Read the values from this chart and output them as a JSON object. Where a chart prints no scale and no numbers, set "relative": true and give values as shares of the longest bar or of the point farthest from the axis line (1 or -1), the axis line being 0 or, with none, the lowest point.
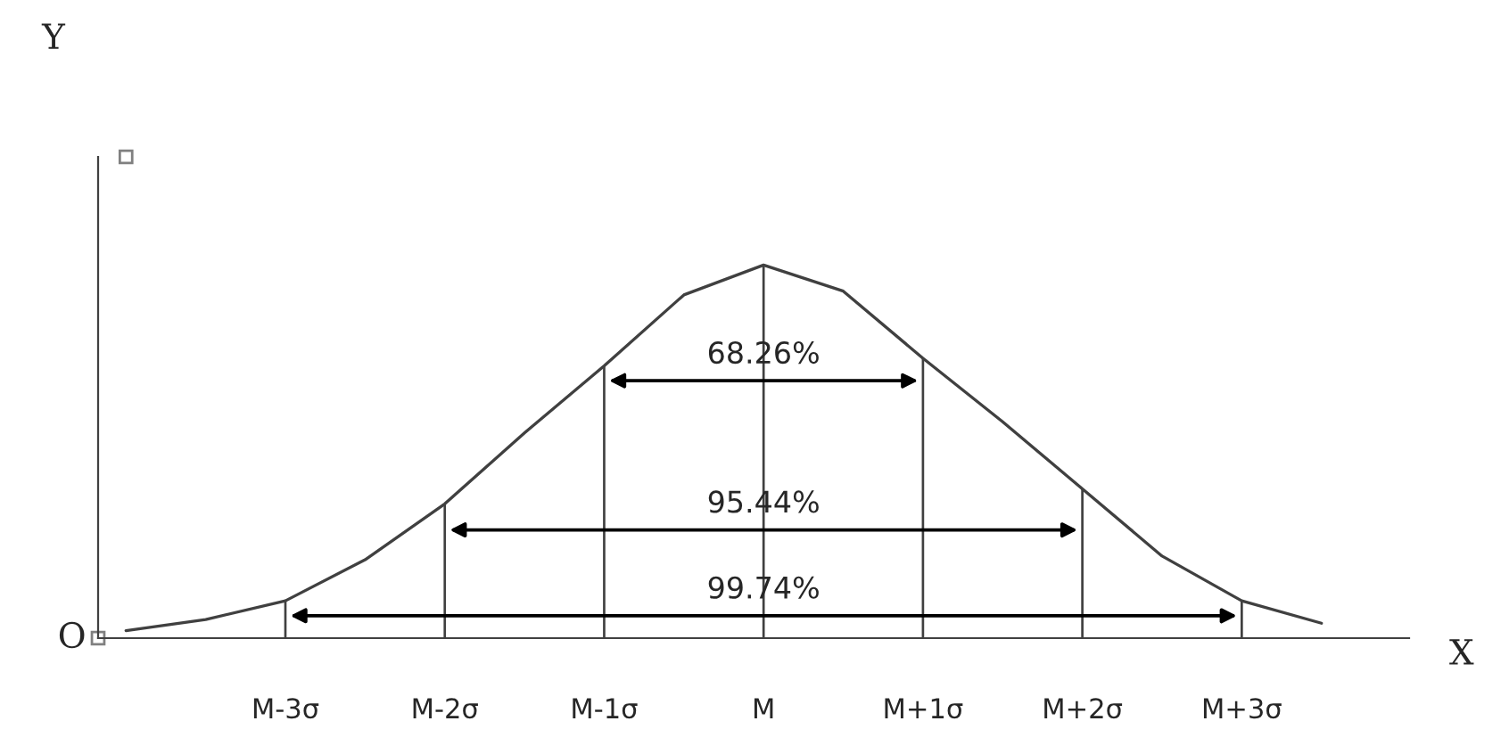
{
  "chart_data": {
    "type": "line",
    "relative": true,
    "xlabel": "X",
    "tick_labels": "x",
    "grid": false,
    "marker": "none",
    "line_style": "solid",
    "categories": [
      null,
      null,
      "M-3σ",
      null,
      "M-2σ",
      null,
      "M-1σ",
      null,
      "M",
      null,
      "M+1σ",
      null,
      "M+2σ",
      null,
      "M+3σ",
      null
    ],
    "series": [
      {
        "color": "#404040",
        "values": [
          0.02,
          0.05,
          0.1,
          0.21,
          0.36,
          0.55,
          0.73,
          0.92,
          1.0,
          0.93,
          0.75,
          0.58,
          0.4,
          0.22,
          0.1,
          0.04
        ]
      },
      {
        "type": "bar",
        "color": "#404040",
        "values": [
          null,
          null,
          0.1,
          null,
          0.36,
          null,
          0.73,
          null,
          1.0,
          null,
          0.75,
          null,
          0.4,
          null,
          0.1,
          null
        ]
      }
    ],
    "annotations": [
      {
        "text": "68.26%",
        "x": "M",
        "y": 0.69
      },
      {
        "text": "95.44%",
        "x": "M",
        "y": 0.29
      },
      {
        "text": "99.74%",
        "x": "M",
        "y": 0.06
      },
      "O",
      "Y"
    ]
  }
}
